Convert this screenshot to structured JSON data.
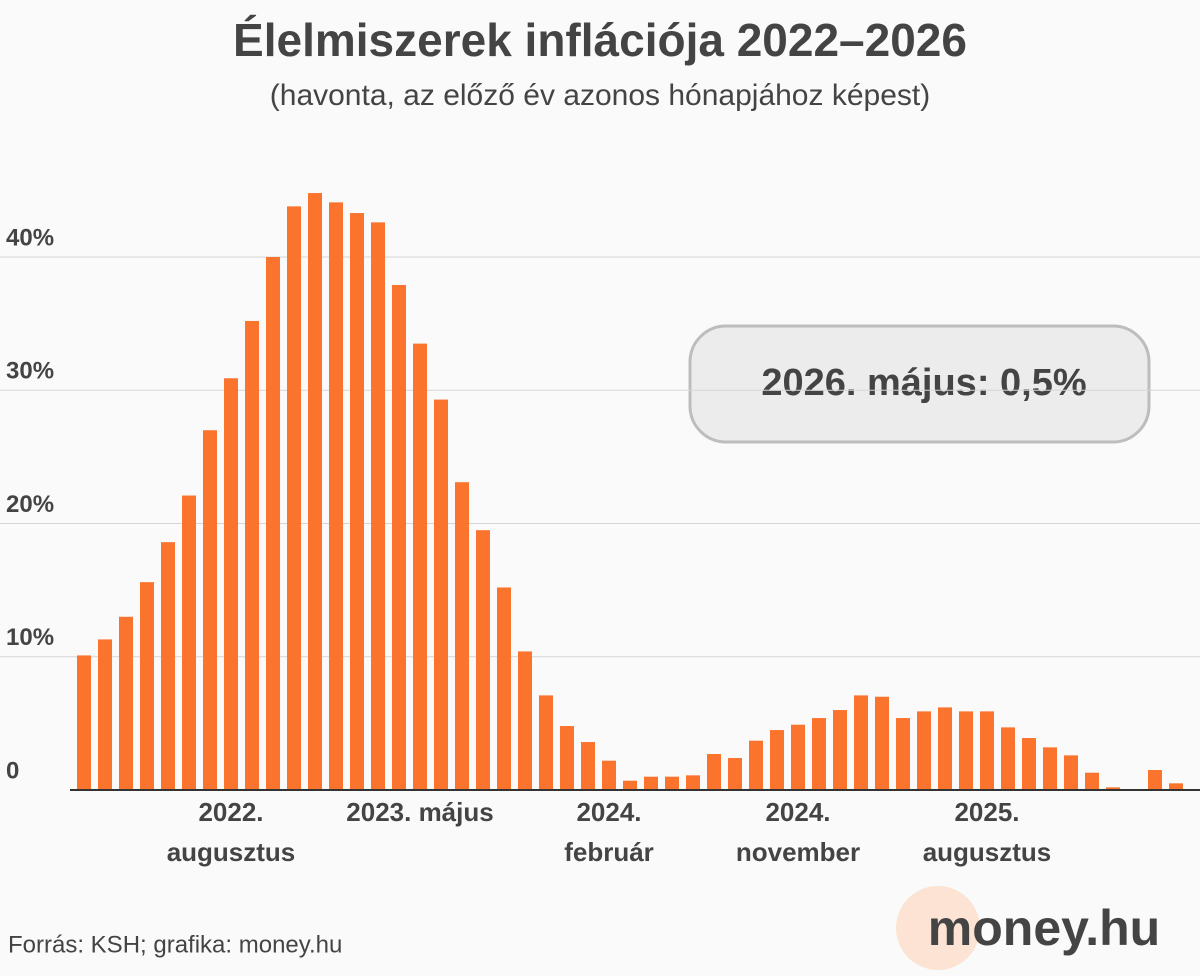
{
  "chart_data": {
    "type": "bar",
    "title": "Élelmiszerek inflációja 2022–2026",
    "subtitle": "(havonta, az előző év azonos hónapjához képest)",
    "categories": [
      null,
      null,
      null,
      null,
      null,
      null,
      null,
      "2022.\naugusztus",
      null,
      null,
      null,
      null,
      null,
      null,
      null,
      null,
      "2023. május",
      null,
      null,
      null,
      null,
      null,
      null,
      null,
      null,
      "2024.\nfebruár",
      null,
      null,
      null,
      null,
      null,
      null,
      null,
      null,
      "2024.\nnovember",
      null,
      null,
      null,
      null,
      null,
      null,
      null,
      null,
      "2025.\naugusztus",
      null,
      null,
      null,
      null,
      null,
      null,
      null,
      null,
      null
    ],
    "values": [
      10.1,
      11.3,
      13.0,
      15.6,
      18.6,
      22.1,
      27.0,
      30.9,
      35.2,
      40.0,
      43.8,
      44.8,
      44.1,
      43.3,
      42.6,
      37.9,
      33.5,
      29.3,
      23.1,
      19.5,
      15.2,
      10.4,
      7.1,
      4.8,
      3.6,
      2.2,
      0.7,
      1.0,
      1.0,
      1.1,
      2.7,
      2.4,
      3.7,
      4.5,
      4.9,
      5.4,
      6.0,
      7.1,
      7.0,
      5.4,
      5.9,
      6.2,
      5.9,
      5.9,
      4.7,
      3.9,
      3.2,
      2.6,
      1.3,
      0.2,
      0,
      1.5,
      0.5
    ],
    "color": "#fb742e",
    "ylim": [
      0,
      46
    ],
    "yticks": [
      0,
      {
        "value": 10,
        "label": "10%"
      },
      {
        "value": 20,
        "label": "20%"
      },
      {
        "value": 30,
        "label": "30%"
      },
      {
        "value": 40,
        "label": "40%"
      }
    ],
    "grid": true,
    "annotation": "2026. május: 0,5%",
    "source": "Forrás: KSH; grafika: money.hu",
    "logo": "money.hu"
  }
}
